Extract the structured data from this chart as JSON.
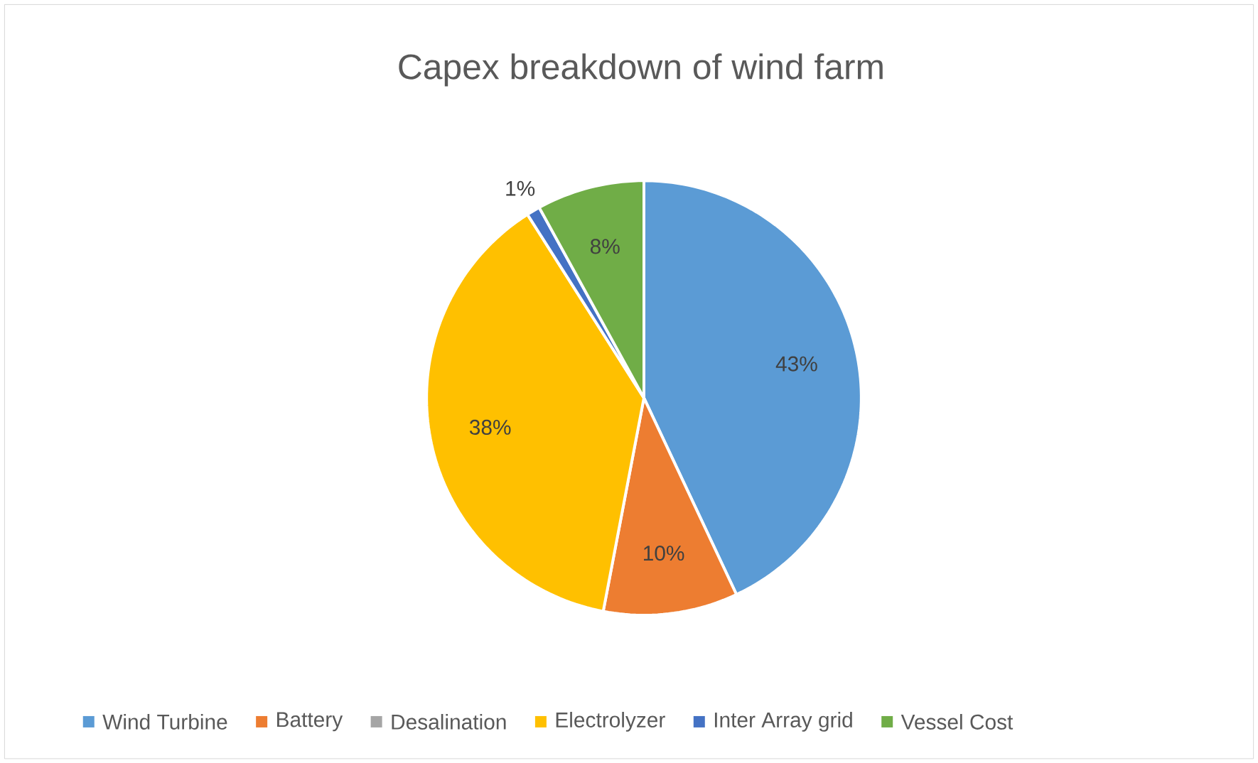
{
  "chart_data": {
    "type": "pie",
    "title": "Capex breakdown of wind farm",
    "categories": [
      "Wind Turbine",
      "Battery",
      "Desalination",
      "Electrolyzer",
      "Inter Array grid",
      "Vessel Cost"
    ],
    "values": [
      43,
      10,
      0,
      38,
      1,
      8
    ],
    "value_labels": [
      "43%",
      "10%",
      null,
      "38%",
      "1%",
      "8%"
    ],
    "colors": [
      "#5b9bd5",
      "#ed7d31",
      "#a5a5a5",
      "#ffc000",
      "#4472c4",
      "#70ad47"
    ],
    "legend": "bottom"
  }
}
